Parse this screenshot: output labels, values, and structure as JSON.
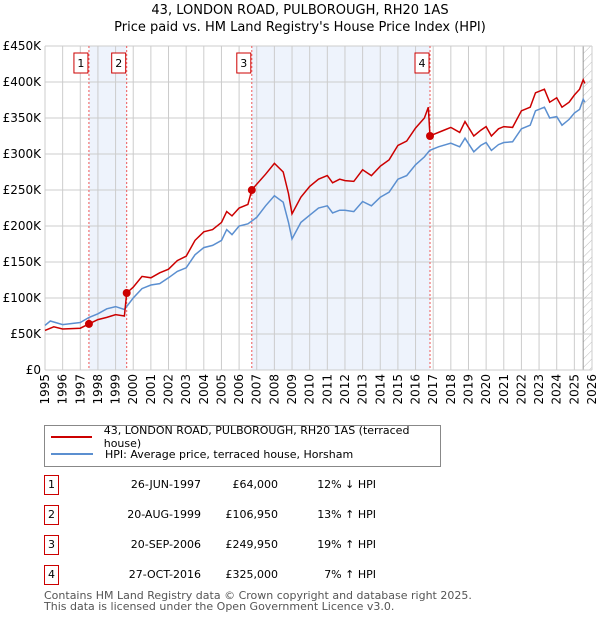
{
  "title": "43, LONDON ROAD, PULBOROUGH, RH20 1AS",
  "subtitle": "Price paid vs. HM Land Registry's House Price Index (HPI)",
  "chart_data": {
    "type": "line",
    "xlim": [
      1995,
      2026
    ],
    "ylim": [
      0,
      450000
    ],
    "y_ticks": [
      0,
      50000,
      100000,
      150000,
      200000,
      250000,
      300000,
      350000,
      400000,
      450000
    ],
    "y_tick_labels": [
      "£0",
      "£50K",
      "£100K",
      "£150K",
      "£200K",
      "£250K",
      "£300K",
      "£350K",
      "£400K",
      "£450K"
    ],
    "x_tick_labels": [
      "1995",
      "1996",
      "1997",
      "1998",
      "1999",
      "2000",
      "2001",
      "2002",
      "2003",
      "2004",
      "2005",
      "2006",
      "2007",
      "2008",
      "2009",
      "2010",
      "2011",
      "2012",
      "2013",
      "2014",
      "2015",
      "2016",
      "2017",
      "2018",
      "2019",
      "2020",
      "2021",
      "2022",
      "2023",
      "2024",
      "2025",
      "2026"
    ],
    "grid": true,
    "colors": {
      "property": "#cc0000",
      "hpi": "#5b8fd0",
      "shade": "#eef3fc"
    },
    "series": [
      {
        "name": "43, LONDON ROAD, PULBOROUGH, RH20 1AS (terraced house)",
        "x": [
          1995,
          1995.5,
          1996,
          1997,
          1997.49,
          1998,
          1998.5,
          1999,
          1999.5,
          1999.63,
          2000,
          2000.5,
          2001,
          2001.5,
          2002,
          2002.5,
          2003,
          2003.5,
          2004,
          2004.5,
          2005,
          2005.3,
          2005.6,
          2006,
          2006.5,
          2006.72,
          2007,
          2007.5,
          2008,
          2008.5,
          2008.8,
          2009,
          2009.5,
          2010,
          2010.5,
          2011,
          2011.3,
          2011.7,
          2012,
          2012.5,
          2013,
          2013.5,
          2014,
          2014.5,
          2015,
          2015.5,
          2016,
          2016.5,
          2016.72,
          2016.82,
          2017,
          2017.5,
          2018,
          2018.5,
          2018.8,
          2019.3,
          2019.7,
          2020,
          2020.3,
          2020.7,
          2021,
          2021.5,
          2022,
          2022.5,
          2022.8,
          2023.3,
          2023.6,
          2024,
          2024.3,
          2024.7,
          2025,
          2025.3,
          2025.5,
          2025.6
        ],
        "values": [
          55000,
          60000,
          57000,
          58000,
          64000,
          70000,
          73000,
          77000,
          75000,
          106950,
          115000,
          130000,
          128000,
          135000,
          140000,
          152000,
          158000,
          180000,
          192000,
          195000,
          205000,
          220000,
          214000,
          225000,
          230000,
          249950,
          258000,
          272000,
          287000,
          275000,
          245000,
          217000,
          240000,
          255000,
          265000,
          270000,
          260000,
          265000,
          263000,
          262000,
          278000,
          270000,
          283000,
          292000,
          312000,
          318000,
          336000,
          350000,
          365000,
          325000,
          327000,
          332000,
          337000,
          330000,
          345000,
          325000,
          333000,
          338000,
          325000,
          335000,
          338000,
          337000,
          360000,
          365000,
          385000,
          390000,
          372000,
          378000,
          365000,
          372000,
          382000,
          390000,
          403000,
          398000
        ]
      },
      {
        "name": "HPI: Average price, terraced house, Horsham",
        "x": [
          1995,
          1995.3,
          1996,
          1997,
          1997.5,
          1998,
          1998.5,
          1999,
          1999.5,
          2000,
          2000.5,
          2001,
          2001.5,
          2002,
          2002.5,
          2003,
          2003.5,
          2004,
          2004.5,
          2005,
          2005.3,
          2005.6,
          2006,
          2006.5,
          2007,
          2007.5,
          2008,
          2008.5,
          2008.8,
          2009,
          2009.5,
          2010,
          2010.5,
          2011,
          2011.3,
          2011.7,
          2012,
          2012.5,
          2013,
          2013.5,
          2014,
          2014.5,
          2015,
          2015.5,
          2016,
          2016.5,
          2016.8,
          2017.3,
          2018,
          2018.5,
          2018.8,
          2019.3,
          2019.7,
          2020,
          2020.3,
          2020.7,
          2021,
          2021.5,
          2022,
          2022.5,
          2022.8,
          2023.3,
          2023.6,
          2024,
          2024.3,
          2024.7,
          2025,
          2025.3,
          2025.5,
          2025.6
        ],
        "values": [
          62000,
          68000,
          63000,
          66000,
          73000,
          78000,
          85000,
          88000,
          84000,
          100000,
          113000,
          118000,
          120000,
          128000,
          137000,
          142000,
          160000,
          170000,
          173000,
          180000,
          195000,
          188000,
          200000,
          203000,
          212000,
          228000,
          242000,
          233000,
          205000,
          182000,
          205000,
          215000,
          225000,
          228000,
          218000,
          222000,
          222000,
          220000,
          234000,
          228000,
          240000,
          247000,
          265000,
          270000,
          285000,
          296000,
          305000,
          310000,
          315000,
          310000,
          322000,
          303000,
          312000,
          316000,
          305000,
          313000,
          316000,
          317000,
          335000,
          340000,
          360000,
          365000,
          350000,
          352000,
          340000,
          348000,
          357000,
          362000,
          376000,
          372000
        ]
      }
    ],
    "sales": [
      {
        "label": "1",
        "x": 1997.49,
        "value": 64000
      },
      {
        "label": "2",
        "x": 1999.63,
        "value": 106950
      },
      {
        "label": "3",
        "x": 2006.72,
        "value": 249950
      },
      {
        "label": "4",
        "x": 2016.82,
        "value": 325000
      }
    ],
    "shaded_ranges": [
      [
        1997.49,
        1999.63
      ],
      [
        2006.72,
        2016.82
      ]
    ],
    "forecast_start": 2025.5
  },
  "legend": {
    "property": "43, LONDON ROAD, PULBOROUGH, RH20 1AS (terraced house)",
    "hpi": "HPI: Average price, terraced house, Horsham"
  },
  "sales_table": [
    {
      "num": "1",
      "date": "26-JUN-1997",
      "price": "£64,000",
      "hpi": "12% ↓ HPI"
    },
    {
      "num": "2",
      "date": "20-AUG-1999",
      "price": "£106,950",
      "hpi": "13% ↑ HPI"
    },
    {
      "num": "3",
      "date": "20-SEP-2006",
      "price": "£249,950",
      "hpi": "19% ↑ HPI"
    },
    {
      "num": "4",
      "date": "27-OCT-2016",
      "price": "£325,000",
      "hpi": "7% ↑ HPI"
    }
  ],
  "footer": {
    "line1": "Contains HM Land Registry data © Crown copyright and database right 2025.",
    "line2": "This data is licensed under the Open Government Licence v3.0."
  }
}
